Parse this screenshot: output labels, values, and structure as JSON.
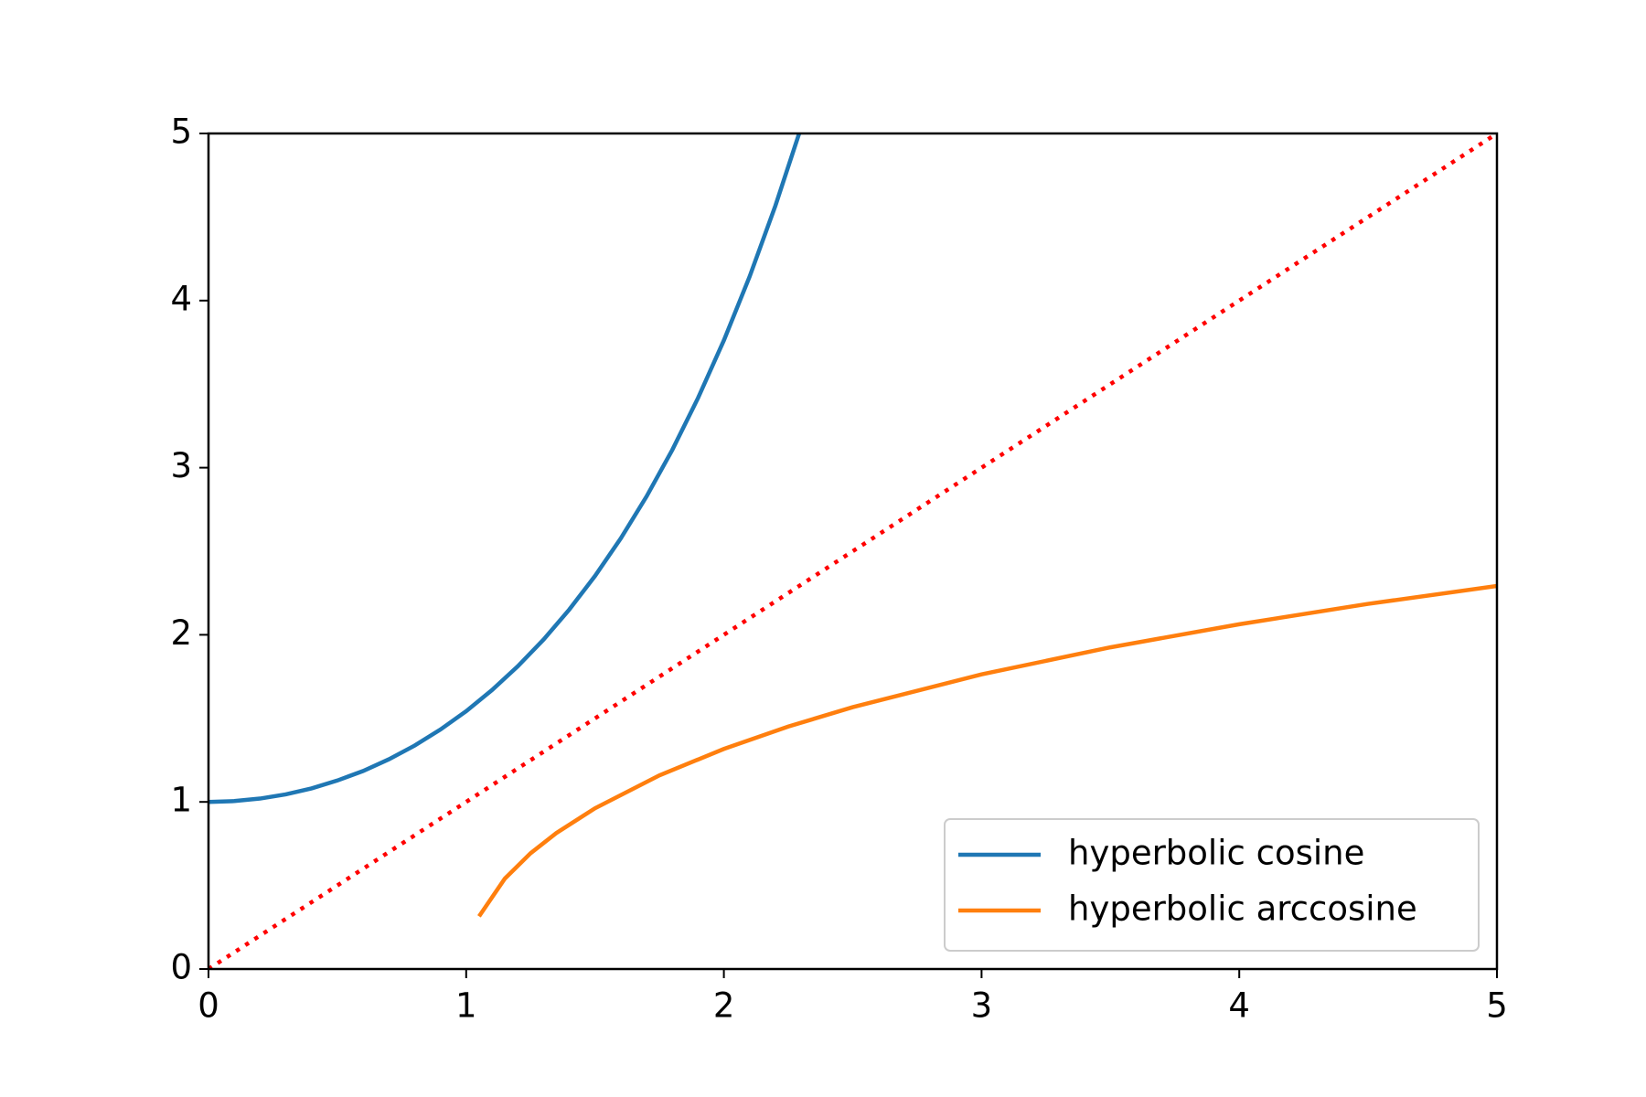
{
  "chart_data": {
    "type": "line",
    "xlim": [
      0,
      5
    ],
    "ylim": [
      0,
      5
    ],
    "xticks": [
      0,
      1,
      2,
      3,
      4,
      5
    ],
    "yticks": [
      0,
      1,
      2,
      3,
      4,
      5
    ],
    "legend": "lower right",
    "series": [
      {
        "name": "hyperbolic cosine",
        "color": "#1f77b4",
        "style": "solid",
        "x": [
          0,
          0.1,
          0.2,
          0.3,
          0.4,
          0.5,
          0.6,
          0.7,
          0.8,
          0.9,
          1.0,
          1.1,
          1.2,
          1.3,
          1.4,
          1.5,
          1.6,
          1.7,
          1.8,
          1.9,
          2.0,
          2.1,
          2.2,
          2.3
        ],
        "values": [
          1,
          1.005,
          1.02,
          1.045,
          1.081,
          1.128,
          1.185,
          1.255,
          1.337,
          1.433,
          1.543,
          1.669,
          1.811,
          1.971,
          2.151,
          2.352,
          2.577,
          2.828,
          3.107,
          3.418,
          3.762,
          4.144,
          4.568,
          5.037
        ]
      },
      {
        "name": "hyperbolic arccosine",
        "color": "#ff7f0e",
        "style": "solid",
        "x": [
          1.05,
          1.15,
          1.25,
          1.35,
          1.5,
          1.75,
          2,
          2.25,
          2.5,
          3,
          3.5,
          4,
          4.5,
          5
        ],
        "values": [
          0.315,
          0.541,
          0.693,
          0.814,
          0.962,
          1.159,
          1.317,
          1.451,
          1.567,
          1.763,
          1.925,
          2.063,
          2.185,
          2.292
        ]
      },
      {
        "color": "#ff0000",
        "style": "dotted",
        "x": [
          0,
          5
        ],
        "values": [
          0,
          5
        ]
      }
    ]
  }
}
